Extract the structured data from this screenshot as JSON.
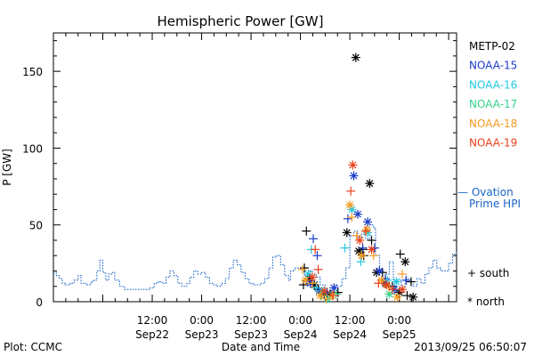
{
  "chart_data": {
    "type": "scatter",
    "title": "Hemispheric Power [GW]",
    "xlabel": "Date and Time",
    "ylabel": "P [GW]",
    "ylim": [
      0,
      175
    ],
    "xlim": [
      -0.5,
      3.58
    ],
    "x_unit": "days since 2013-09-22 00:00 UT",
    "x_ticks": [
      {
        "x": 0.5,
        "time": "12:00",
        "date": "Sep22"
      },
      {
        "x": 1.0,
        "time": "0:00",
        "date": "Sep23"
      },
      {
        "x": 1.5,
        "time": "12:00",
        "date": "Sep23"
      },
      {
        "x": 2.0,
        "time": "0:00",
        "date": "Sep24"
      },
      {
        "x": 2.5,
        "time": "12:00",
        "date": "Sep24"
      },
      {
        "x": 3.0,
        "time": "0:00",
        "date": "Sep25"
      }
    ],
    "y_ticks": [
      0,
      50,
      100,
      150
    ],
    "legend": [
      {
        "name": "METP-02",
        "color": "#000000"
      },
      {
        "name": "NOAA-15",
        "color": "#1a3cc8"
      },
      {
        "name": "NOAA-16",
        "color": "#22c8e0"
      },
      {
        "name": "NOAA-17",
        "color": "#34d28c"
      },
      {
        "name": "NOAA-18",
        "color": "#f59a1e"
      },
      {
        "name": "NOAA-19",
        "color": "#e8401c"
      }
    ],
    "ovation_label_line1": "— Ovation",
    "ovation_label_line2": "Prime HPI",
    "ovation_color": "#1a64c8",
    "symbol_south_label": "+ south",
    "symbol_north_label": "* north",
    "ovation_series": [
      [
        -0.5,
        19
      ],
      [
        -0.47,
        17
      ],
      [
        -0.44,
        15
      ],
      [
        -0.41,
        12
      ],
      [
        -0.38,
        11
      ],
      [
        -0.33,
        12
      ],
      [
        -0.29,
        14
      ],
      [
        -0.25,
        17
      ],
      [
        -0.22,
        12
      ],
      [
        -0.17,
        11
      ],
      [
        -0.12,
        13
      ],
      [
        -0.09,
        14
      ],
      [
        -0.06,
        20
      ],
      [
        -0.03,
        27
      ],
      [
        0.0,
        19
      ],
      [
        0.03,
        14
      ],
      [
        0.06,
        18
      ],
      [
        0.09,
        19
      ],
      [
        0.12,
        14
      ],
      [
        0.17,
        10
      ],
      [
        0.22,
        8
      ],
      [
        0.3,
        8
      ],
      [
        0.4,
        8
      ],
      [
        0.48,
        9
      ],
      [
        0.52,
        12
      ],
      [
        0.56,
        13
      ],
      [
        0.6,
        12
      ],
      [
        0.64,
        16
      ],
      [
        0.68,
        20
      ],
      [
        0.72,
        17
      ],
      [
        0.76,
        12
      ],
      [
        0.8,
        10
      ],
      [
        0.85,
        12
      ],
      [
        0.88,
        16
      ],
      [
        0.92,
        20
      ],
      [
        0.96,
        18
      ],
      [
        1.0,
        19
      ],
      [
        1.04,
        16
      ],
      [
        1.08,
        12
      ],
      [
        1.12,
        11
      ],
      [
        1.16,
        10
      ],
      [
        1.2,
        12
      ],
      [
        1.24,
        15
      ],
      [
        1.28,
        22
      ],
      [
        1.32,
        27
      ],
      [
        1.36,
        24
      ],
      [
        1.4,
        19
      ],
      [
        1.44,
        15
      ],
      [
        1.48,
        12
      ],
      [
        1.52,
        11
      ],
      [
        1.56,
        11
      ],
      [
        1.6,
        12
      ],
      [
        1.64,
        15
      ],
      [
        1.68,
        22
      ],
      [
        1.72,
        29
      ],
      [
        1.76,
        30
      ],
      [
        1.8,
        24
      ],
      [
        1.84,
        17
      ],
      [
        1.88,
        14
      ],
      [
        1.9,
        20
      ],
      [
        1.94,
        22
      ],
      [
        2.0,
        21
      ],
      [
        2.04,
        17
      ],
      [
        2.08,
        20
      ],
      [
        2.12,
        18
      ],
      [
        2.16,
        16
      ],
      [
        2.2,
        11
      ],
      [
        2.25,
        7
      ],
      [
        2.3,
        6
      ],
      [
        2.34,
        11
      ],
      [
        2.38,
        10
      ],
      [
        2.42,
        15
      ],
      [
        2.46,
        22
      ],
      [
        2.5,
        43
      ],
      [
        2.54,
        46
      ],
      [
        2.58,
        42
      ],
      [
        2.62,
        44
      ],
      [
        2.66,
        41
      ],
      [
        2.7,
        50
      ],
      [
        2.74,
        48
      ],
      [
        2.76,
        30
      ],
      [
        2.8,
        21
      ],
      [
        2.83,
        15
      ],
      [
        2.86,
        18
      ],
      [
        2.9,
        26
      ],
      [
        2.94,
        13
      ],
      [
        2.98,
        14
      ],
      [
        3.02,
        10
      ],
      [
        3.06,
        15
      ],
      [
        3.1,
        13
      ],
      [
        3.14,
        10
      ],
      [
        3.18,
        15
      ],
      [
        3.22,
        12
      ],
      [
        3.26,
        18
      ],
      [
        3.3,
        22
      ],
      [
        3.34,
        27
      ],
      [
        3.38,
        22
      ],
      [
        3.42,
        20
      ],
      [
        3.46,
        20
      ],
      [
        3.5,
        25
      ],
      [
        3.54,
        31
      ],
      [
        3.58,
        33
      ]
    ],
    "points": [
      {
        "sat": "METP-02",
        "sym": "+",
        "x": 2.06,
        "y": 46
      },
      {
        "sat": "METP-02",
        "sym": "+",
        "x": 2.04,
        "y": 22
      },
      {
        "sat": "METP-02",
        "sym": "+",
        "x": 2.03,
        "y": 11
      },
      {
        "sat": "METP-02",
        "sym": "*",
        "x": 2.09,
        "y": 15
      },
      {
        "sat": "METP-02",
        "sym": "*",
        "x": 2.14,
        "y": 11
      },
      {
        "sat": "METP-02",
        "sym": "+",
        "x": 2.18,
        "y": 8
      },
      {
        "sat": "METP-02",
        "sym": "*",
        "x": 2.24,
        "y": 5
      },
      {
        "sat": "METP-02",
        "sym": "*",
        "x": 2.3,
        "y": 5
      },
      {
        "sat": "METP-02",
        "sym": "+",
        "x": 2.38,
        "y": 6
      },
      {
        "sat": "METP-02",
        "sym": "*",
        "x": 2.47,
        "y": 45
      },
      {
        "sat": "METP-02",
        "sym": "*",
        "x": 2.56,
        "y": 159
      },
      {
        "sat": "METP-02",
        "sym": "*",
        "x": 2.59,
        "y": 33
      },
      {
        "sat": "METP-02",
        "sym": "+",
        "x": 2.63,
        "y": 34
      },
      {
        "sat": "METP-02",
        "sym": "*",
        "x": 2.7,
        "y": 77
      },
      {
        "sat": "METP-02",
        "sym": "+",
        "x": 2.72,
        "y": 40
      },
      {
        "sat": "METP-02",
        "sym": "+",
        "x": 2.64,
        "y": 30
      },
      {
        "sat": "METP-02",
        "sym": "*",
        "x": 2.77,
        "y": 19
      },
      {
        "sat": "METP-02",
        "sym": "+",
        "x": 2.83,
        "y": 19
      },
      {
        "sat": "METP-02",
        "sym": "*",
        "x": 2.86,
        "y": 12
      },
      {
        "sat": "METP-02",
        "sym": "+",
        "x": 2.93,
        "y": 10
      },
      {
        "sat": "METP-02",
        "sym": "*",
        "x": 3.0,
        "y": 6
      },
      {
        "sat": "METP-02",
        "sym": "+",
        "x": 3.01,
        "y": 31
      },
      {
        "sat": "METP-02",
        "sym": "*",
        "x": 3.06,
        "y": 26
      },
      {
        "sat": "METP-02",
        "sym": "+",
        "x": 3.08,
        "y": 4
      },
      {
        "sat": "METP-02",
        "sym": "+",
        "x": 3.12,
        "y": 13
      },
      {
        "sat": "METP-02",
        "sym": "*",
        "x": 3.14,
        "y": 3
      },
      {
        "sat": "NOAA-15",
        "sym": "+",
        "x": 2.13,
        "y": 41
      },
      {
        "sat": "NOAA-15",
        "sym": "+",
        "x": 2.17,
        "y": 30
      },
      {
        "sat": "NOAA-15",
        "sym": "*",
        "x": 2.1,
        "y": 12
      },
      {
        "sat": "NOAA-15",
        "sym": "*",
        "x": 2.19,
        "y": 7
      },
      {
        "sat": "NOAA-15",
        "sym": "+",
        "x": 2.27,
        "y": 6
      },
      {
        "sat": "NOAA-15",
        "sym": "*",
        "x": 2.34,
        "y": 9
      },
      {
        "sat": "NOAA-15",
        "sym": "+",
        "x": 2.48,
        "y": 54
      },
      {
        "sat": "NOAA-15",
        "sym": "*",
        "x": 2.54,
        "y": 82
      },
      {
        "sat": "NOAA-15",
        "sym": "*",
        "x": 2.58,
        "y": 57
      },
      {
        "sat": "NOAA-15",
        "sym": "+",
        "x": 2.63,
        "y": 35
      },
      {
        "sat": "NOAA-15",
        "sym": "*",
        "x": 2.68,
        "y": 52
      },
      {
        "sat": "NOAA-15",
        "sym": "+",
        "x": 2.75,
        "y": 35
      },
      {
        "sat": "NOAA-15",
        "sym": "*",
        "x": 2.8,
        "y": 20
      },
      {
        "sat": "NOAA-15",
        "sym": "+",
        "x": 2.86,
        "y": 15
      },
      {
        "sat": "NOAA-15",
        "sym": "*",
        "x": 2.95,
        "y": 8
      },
      {
        "sat": "NOAA-15",
        "sym": "+",
        "x": 3.07,
        "y": 14
      },
      {
        "sat": "NOAA-16",
        "sym": "+",
        "x": 2.11,
        "y": 34
      },
      {
        "sat": "NOAA-16",
        "sym": "*",
        "x": 2.08,
        "y": 18
      },
      {
        "sat": "NOAA-16",
        "sym": "+",
        "x": 2.16,
        "y": 9
      },
      {
        "sat": "NOAA-16",
        "sym": "*",
        "x": 2.22,
        "y": 7
      },
      {
        "sat": "NOAA-16",
        "sym": "+",
        "x": 2.45,
        "y": 35
      },
      {
        "sat": "NOAA-16",
        "sym": "*",
        "x": 2.52,
        "y": 60
      },
      {
        "sat": "NOAA-16",
        "sym": "+",
        "x": 2.61,
        "y": 26
      },
      {
        "sat": "NOAA-16",
        "sym": "*",
        "x": 2.68,
        "y": 45
      },
      {
        "sat": "NOAA-16",
        "sym": "+",
        "x": 2.88,
        "y": 14
      },
      {
        "sat": "NOAA-16",
        "sym": "*",
        "x": 2.97,
        "y": 13
      },
      {
        "sat": "NOAA-17",
        "sym": "+",
        "x": 2.21,
        "y": 4
      },
      {
        "sat": "NOAA-17",
        "sym": "*",
        "x": 2.28,
        "y": 2
      },
      {
        "sat": "NOAA-17",
        "sym": "+",
        "x": 2.36,
        "y": 5
      },
      {
        "sat": "NOAA-17",
        "sym": "*",
        "x": 2.9,
        "y": 5
      },
      {
        "sat": "NOAA-18",
        "sym": "+",
        "x": 2.02,
        "y": 21
      },
      {
        "sat": "NOAA-18",
        "sym": "*",
        "x": 2.05,
        "y": 14
      },
      {
        "sat": "NOAA-18",
        "sym": "+",
        "x": 2.12,
        "y": 12
      },
      {
        "sat": "NOAA-18",
        "sym": "*",
        "x": 2.2,
        "y": 4
      },
      {
        "sat": "NOAA-18",
        "sym": "+",
        "x": 2.26,
        "y": 2
      },
      {
        "sat": "NOAA-18",
        "sym": "*",
        "x": 2.32,
        "y": 4
      },
      {
        "sat": "NOAA-18",
        "sym": "*",
        "x": 2.5,
        "y": 63
      },
      {
        "sat": "NOAA-18",
        "sym": "+",
        "x": 2.52,
        "y": 55
      },
      {
        "sat": "NOAA-18",
        "sym": "+",
        "x": 2.57,
        "y": 43
      },
      {
        "sat": "NOAA-18",
        "sym": "*",
        "x": 2.62,
        "y": 30
      },
      {
        "sat": "NOAA-18",
        "sym": "*",
        "x": 2.67,
        "y": 47
      },
      {
        "sat": "NOAA-18",
        "sym": "+",
        "x": 2.74,
        "y": 30
      },
      {
        "sat": "NOAA-18",
        "sym": "*",
        "x": 2.82,
        "y": 14
      },
      {
        "sat": "NOAA-18",
        "sym": "+",
        "x": 2.9,
        "y": 9
      },
      {
        "sat": "NOAA-18",
        "sym": "*",
        "x": 2.98,
        "y": 3
      },
      {
        "sat": "NOAA-18",
        "sym": "+",
        "x": 3.03,
        "y": 18
      },
      {
        "sat": "NOAA-19",
        "sym": "+",
        "x": 2.15,
        "y": 34
      },
      {
        "sat": "NOAA-19",
        "sym": "*",
        "x": 2.12,
        "y": 16
      },
      {
        "sat": "NOAA-19",
        "sym": "+",
        "x": 2.18,
        "y": 21
      },
      {
        "sat": "NOAA-19",
        "sym": "*",
        "x": 2.24,
        "y": 7
      },
      {
        "sat": "NOAA-19",
        "sym": "+",
        "x": 2.33,
        "y": 4
      },
      {
        "sat": "NOAA-19",
        "sym": "*",
        "x": 2.53,
        "y": 89
      },
      {
        "sat": "NOAA-19",
        "sym": "+",
        "x": 2.51,
        "y": 72
      },
      {
        "sat": "NOAA-19",
        "sym": "*",
        "x": 2.6,
        "y": 40
      },
      {
        "sat": "NOAA-19",
        "sym": "+",
        "x": 2.66,
        "y": 46
      },
      {
        "sat": "NOAA-19",
        "sym": "*",
        "x": 2.72,
        "y": 34
      },
      {
        "sat": "NOAA-19",
        "sym": "+",
        "x": 2.79,
        "y": 12
      },
      {
        "sat": "NOAA-19",
        "sym": "*",
        "x": 2.87,
        "y": 11
      },
      {
        "sat": "NOAA-19",
        "sym": "+",
        "x": 2.93,
        "y": 8
      },
      {
        "sat": "NOAA-19",
        "sym": "*",
        "x": 3.03,
        "y": 8
      }
    ]
  },
  "footer": {
    "plot_credit": "Plot: CCMC",
    "timestamp": "2013/09/25 06:50:07"
  }
}
